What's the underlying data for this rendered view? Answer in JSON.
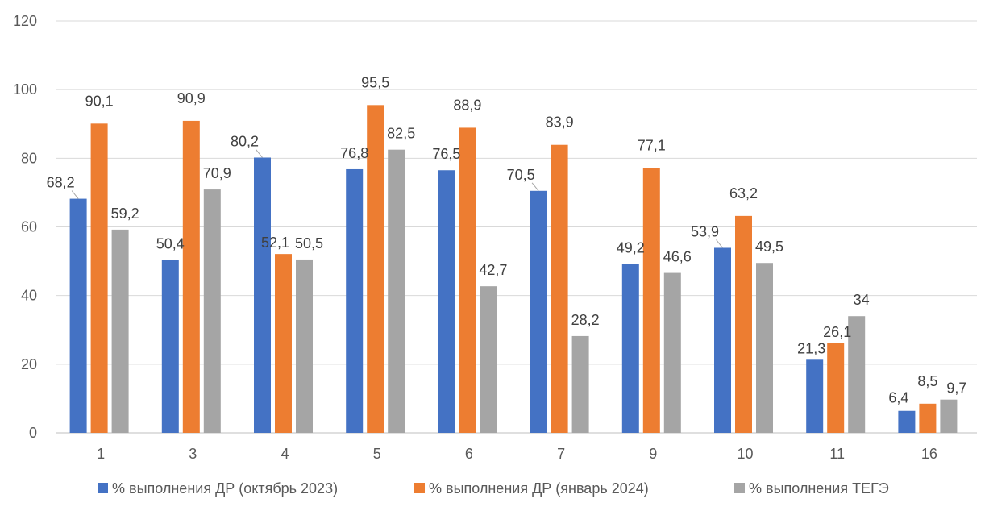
{
  "chart_data": {
    "type": "bar",
    "title": "",
    "xlabel": "",
    "ylabel": "",
    "categories": [
      "1",
      "3",
      "4",
      "5",
      "6",
      "7",
      "9",
      "10",
      "11",
      "16"
    ],
    "ylim": [
      0,
      120
    ],
    "yticks": [
      0,
      20,
      40,
      60,
      80,
      100,
      120
    ],
    "grid": true,
    "legend_position": "bottom",
    "series": [
      {
        "name": "% выполнения ДР (октябрь 2023)",
        "color": "#4472C4",
        "values": [
          68.2,
          50.4,
          80.2,
          76.8,
          76.5,
          70.5,
          49.2,
          53.9,
          21.3,
          6.4
        ],
        "labels": [
          "68,2",
          "50,4",
          "80,2",
          "76,8",
          "76,5",
          "70,5",
          "49,2",
          "53,9",
          "21,3",
          "6,4"
        ]
      },
      {
        "name": "% выполнения ДР (январь 2024)",
        "color": "#ED7D31",
        "values": [
          90.1,
          90.9,
          52.1,
          95.5,
          88.9,
          83.9,
          77.1,
          63.2,
          26.1,
          8.5
        ],
        "labels": [
          "90,1",
          "90,9",
          "52,1",
          "95,5",
          "88,9",
          "83,9",
          "77,1",
          "63,2",
          "26,1",
          "8,5"
        ]
      },
      {
        "name": "% выполнения ТЕГЭ",
        "color": "#A5A5A5",
        "values": [
          59.2,
          70.9,
          50.5,
          82.5,
          42.7,
          28.2,
          46.6,
          49.5,
          34,
          9.7
        ],
        "labels": [
          "59,2",
          "70,9",
          "50,5",
          "82,5",
          "42,7",
          "28,2",
          "46,6",
          "49,5",
          "34",
          "9,7"
        ]
      }
    ]
  }
}
